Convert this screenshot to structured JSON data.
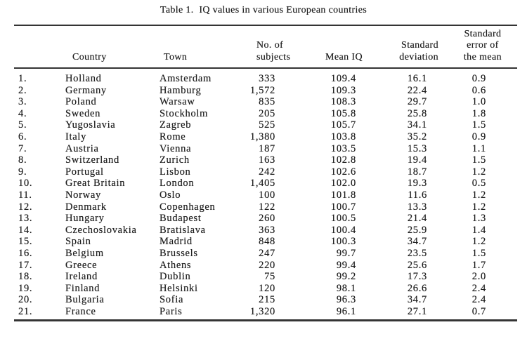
{
  "page": {
    "background": "#ffffff",
    "ink_color": "#1f1f1f",
    "rule_color": "#343434"
  },
  "table": {
    "title": "Table 1.  IQ values in various European countries",
    "headers": {
      "country": "Country",
      "town": "Town",
      "subjects_l1": "No. of",
      "subjects_l2": "subjects",
      "mean_iq": "Mean IQ",
      "sd_l1": "Standard",
      "sd_l2": "deviation",
      "se_l1": "Standard",
      "se_l2": "error of",
      "se_l3": "the mean"
    },
    "rows": [
      {
        "num": "1.",
        "country": "Holland",
        "town": "Amsterdam",
        "subjects": "333",
        "mean_iq": "109.4",
        "sd": "16.1",
        "se": "0.9"
      },
      {
        "num": "2.",
        "country": "Germany",
        "town": "Hamburg",
        "subjects": "1,572",
        "mean_iq": "109.3",
        "sd": "22.4",
        "se": "0.6"
      },
      {
        "num": "3.",
        "country": "Poland",
        "town": "Warsaw",
        "subjects": "835",
        "mean_iq": "108.3",
        "sd": "29.7",
        "se": "1.0"
      },
      {
        "num": "4.",
        "country": "Sweden",
        "town": "Stockholm",
        "subjects": "205",
        "mean_iq": "105.8",
        "sd": "25.8",
        "se": "1.8"
      },
      {
        "num": "5.",
        "country": "Yugoslavia",
        "town": "Zagreb",
        "subjects": "525",
        "mean_iq": "105.7",
        "sd": "34.1",
        "se": "1.5"
      },
      {
        "num": "6.",
        "country": "Italy",
        "town": "Rome",
        "subjects": "1,380",
        "mean_iq": "103.8",
        "sd": "35.2",
        "se": "0.9"
      },
      {
        "num": "7.",
        "country": "Austria",
        "town": "Vienna",
        "subjects": "187",
        "mean_iq": "103.5",
        "sd": "15.3",
        "se": "1.1"
      },
      {
        "num": "8.",
        "country": "Switzerland",
        "town": "Zurich",
        "subjects": "163",
        "mean_iq": "102.8",
        "sd": "19.4",
        "se": "1.5"
      },
      {
        "num": "9.",
        "country": "Portugal",
        "town": "Lisbon",
        "subjects": "242",
        "mean_iq": "102.6",
        "sd": "18.7",
        "se": "1.2"
      },
      {
        "num": "10.",
        "country": "Great Britain",
        "town": "London",
        "subjects": "1,405",
        "mean_iq": "102.0",
        "sd": "19.3",
        "se": "0.5"
      },
      {
        "num": "11.",
        "country": "Norway",
        "town": "Oslo",
        "subjects": "100",
        "mean_iq": "101.8",
        "sd": "11.6",
        "se": "1.2"
      },
      {
        "num": "12.",
        "country": "Denmark",
        "town": "Copenhagen",
        "subjects": "122",
        "mean_iq": "100.7",
        "sd": "13.3",
        "se": "1.2"
      },
      {
        "num": "13.",
        "country": "Hungary",
        "town": "Budapest",
        "subjects": "260",
        "mean_iq": "100.5",
        "sd": "21.4",
        "se": "1.3"
      },
      {
        "num": "14.",
        "country": "Czechoslovakia",
        "town": "Bratislava",
        "subjects": "363",
        "mean_iq": "100.4",
        "sd": "25.9",
        "se": "1.4"
      },
      {
        "num": "15.",
        "country": "Spain",
        "town": "Madrid",
        "subjects": "848",
        "mean_iq": "100.3",
        "sd": "34.7",
        "se": "1.2"
      },
      {
        "num": "16.",
        "country": "Belgium",
        "town": "Brussels",
        "subjects": "247",
        "mean_iq": "99.7",
        "sd": "23.5",
        "se": "1.5"
      },
      {
        "num": "17.",
        "country": "Greece",
        "town": "Athens",
        "subjects": "220",
        "mean_iq": "99.4",
        "sd": "25.6",
        "se": "1.7"
      },
      {
        "num": "18.",
        "country": "Ireland",
        "town": "Dublin",
        "subjects": "75",
        "mean_iq": "99.2",
        "sd": "17.3",
        "se": "2.0"
      },
      {
        "num": "19.",
        "country": "Finland",
        "town": "Helsinki",
        "subjects": "120",
        "mean_iq": "98.1",
        "sd": "26.6",
        "se": "2.4"
      },
      {
        "num": "20.",
        "country": "Bulgaria",
        "town": "Sofia",
        "subjects": "215",
        "mean_iq": "96.3",
        "sd": "34.7",
        "se": "2.4"
      },
      {
        "num": "21.",
        "country": "France",
        "town": "Paris",
        "subjects": "1,320",
        "mean_iq": "96.1",
        "sd": "27.1",
        "se": "0.7"
      }
    ]
  },
  "chart_data": {
    "type": "table",
    "title": "Table 1. IQ values in various European countries",
    "columns": [
      "",
      "Country",
      "Town",
      "No. of subjects",
      "Mean IQ",
      "Standard deviation",
      "Standard error of the mean"
    ],
    "rows": [
      [
        "1.",
        "Holland",
        "Amsterdam",
        "333",
        "109.4",
        "16.1",
        "0.9"
      ],
      [
        "2.",
        "Germany",
        "Hamburg",
        "1,572",
        "109.3",
        "22.4",
        "0.6"
      ],
      [
        "3.",
        "Poland",
        "Warsaw",
        "835",
        "108.3",
        "29.7",
        "1.0"
      ],
      [
        "4.",
        "Sweden",
        "Stockholm",
        "205",
        "105.8",
        "25.8",
        "1.8"
      ],
      [
        "5.",
        "Yugoslavia",
        "Zagreb",
        "525",
        "105.7",
        "34.1",
        "1.5"
      ],
      [
        "6.",
        "Italy",
        "Rome",
        "1,380",
        "103.8",
        "35.2",
        "0.9"
      ],
      [
        "7.",
        "Austria",
        "Vienna",
        "187",
        "103.5",
        "15.3",
        "1.1"
      ],
      [
        "8.",
        "Switzerland",
        "Zurich",
        "163",
        "102.8",
        "19.4",
        "1.5"
      ],
      [
        "9.",
        "Portugal",
        "Lisbon",
        "242",
        "102.6",
        "18.7",
        "1.2"
      ],
      [
        "10.",
        "Great Britain",
        "London",
        "1,405",
        "102.0",
        "19.3",
        "0.5"
      ],
      [
        "11.",
        "Norway",
        "Oslo",
        "100",
        "101.8",
        "11.6",
        "1.2"
      ],
      [
        "12.",
        "Denmark",
        "Copenhagen",
        "122",
        "100.7",
        "13.3",
        "1.2"
      ],
      [
        "13.",
        "Hungary",
        "Budapest",
        "260",
        "100.5",
        "21.4",
        "1.3"
      ],
      [
        "14.",
        "Czechoslovakia",
        "Bratislava",
        "363",
        "100.4",
        "25.9",
        "1.4"
      ],
      [
        "15.",
        "Spain",
        "Madrid",
        "848",
        "100.3",
        "34.7",
        "1.2"
      ],
      [
        "16.",
        "Belgium",
        "Brussels",
        "247",
        "99.7",
        "23.5",
        "1.5"
      ],
      [
        "17.",
        "Greece",
        "Athens",
        "220",
        "99.4",
        "25.6",
        "1.7"
      ],
      [
        "18.",
        "Ireland",
        "Dublin",
        "75",
        "99.2",
        "17.3",
        "2.0"
      ],
      [
        "19.",
        "Finland",
        "Helsinki",
        "120",
        "98.1",
        "26.6",
        "2.4"
      ],
      [
        "20.",
        "Bulgaria",
        "Sofia",
        "215",
        "96.3",
        "34.7",
        "2.4"
      ],
      [
        "21.",
        "France",
        "Paris",
        "1,320",
        "96.1",
        "27.1",
        "0.7"
      ]
    ]
  }
}
